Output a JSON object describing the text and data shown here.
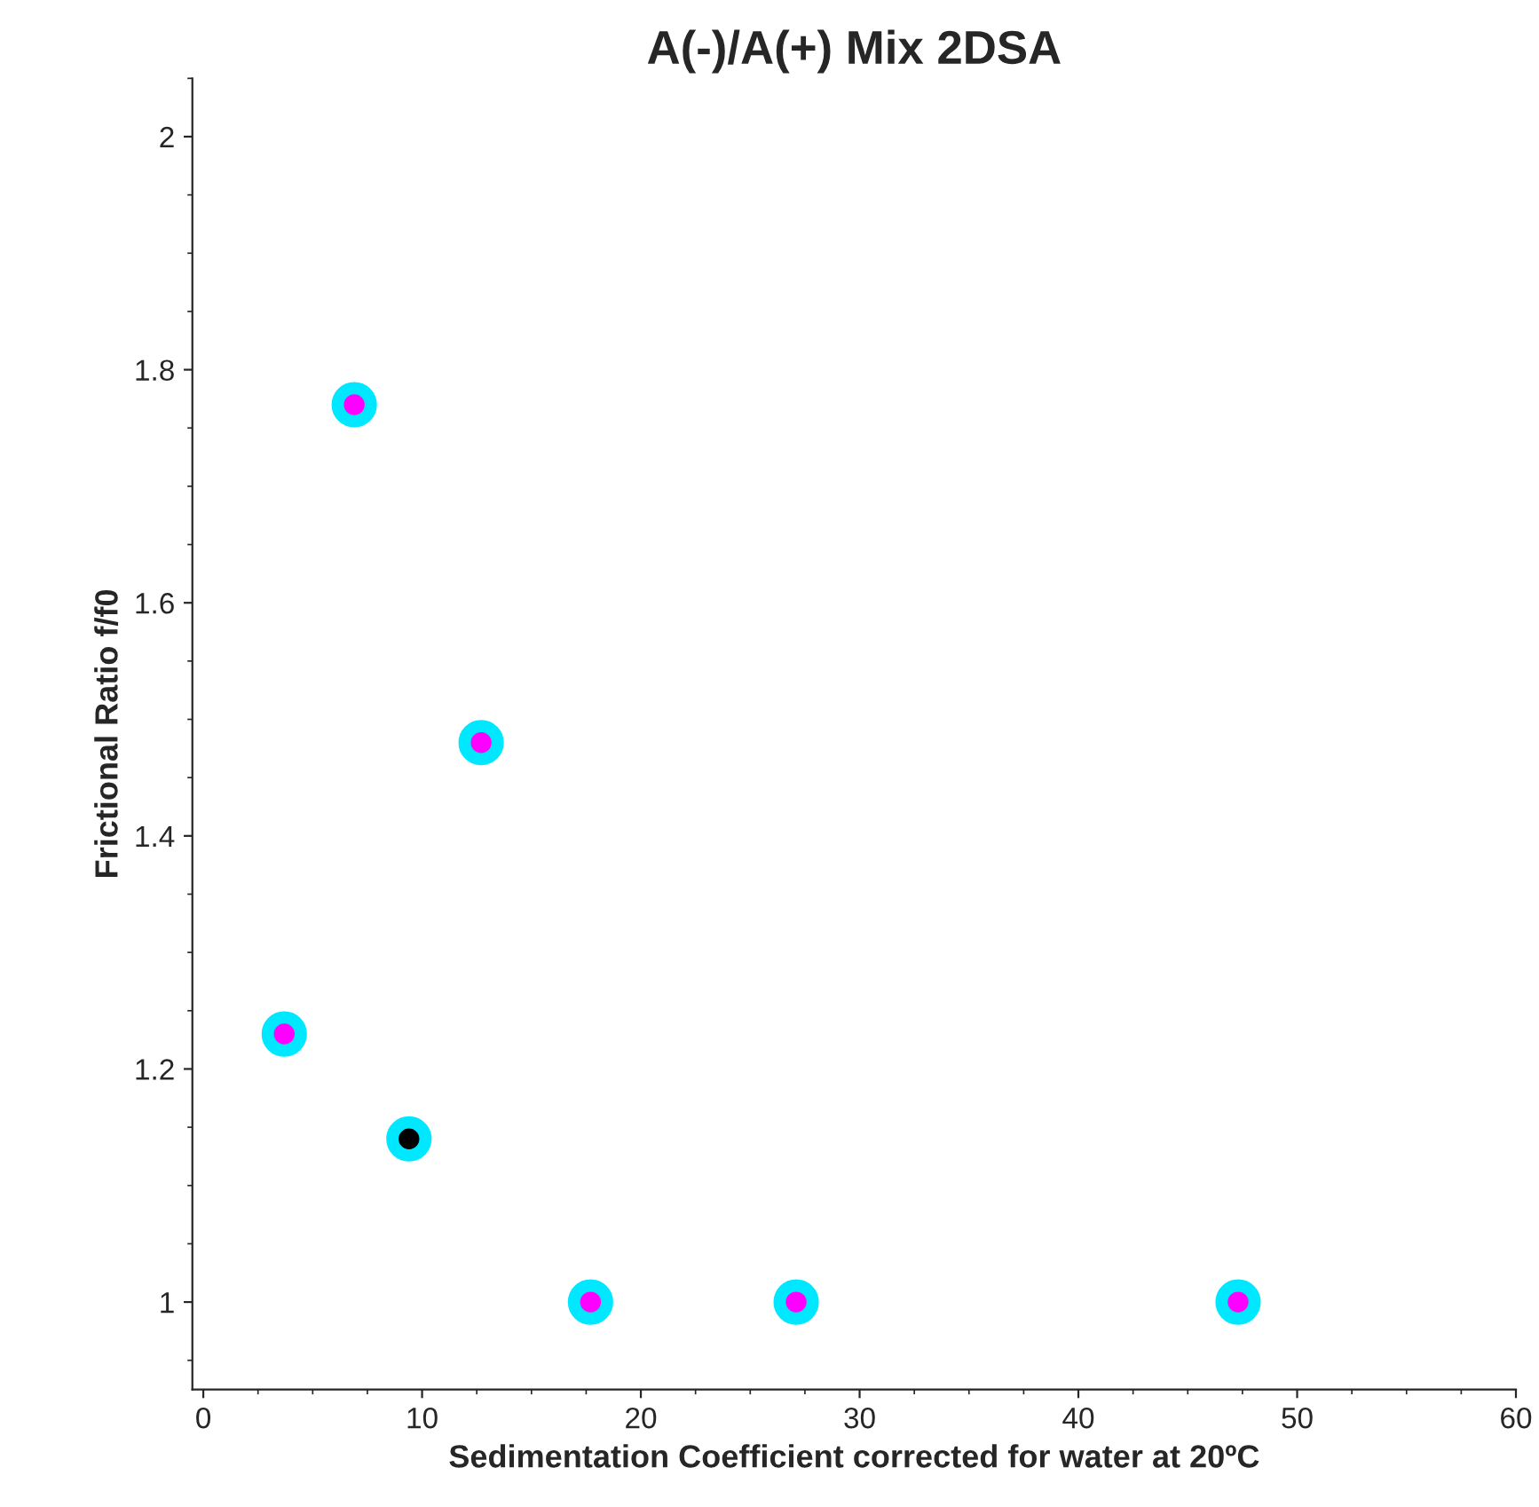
{
  "chart_data": {
    "type": "scatter",
    "title": "A(-)/A(+) Mix 2DSA",
    "xlabel": "Sedimentation Coefficient corrected for water at 20ºC",
    "ylabel": "Frictional Ratio f/f0",
    "x": [
      6.9,
      12.7,
      3.7,
      9.4,
      17.7,
      27.1,
      47.3
    ],
    "values": [
      1.77,
      1.48,
      1.23,
      1.14,
      1.0,
      1.0,
      1.0
    ],
    "colors": [
      "#ff00ff",
      "#ff00ff",
      "#ff00ff",
      "#000000",
      "#ff00ff",
      "#ff00ff",
      "#ff00ff"
    ],
    "xlim": [
      -0.5,
      60
    ],
    "ylim": [
      0.925,
      2.05
    ],
    "xticks": [
      0,
      10,
      20,
      30,
      40,
      50,
      60
    ],
    "yticks": [
      1,
      1.2,
      1.4,
      1.6,
      1.8,
      2
    ],
    "grid": false
  }
}
